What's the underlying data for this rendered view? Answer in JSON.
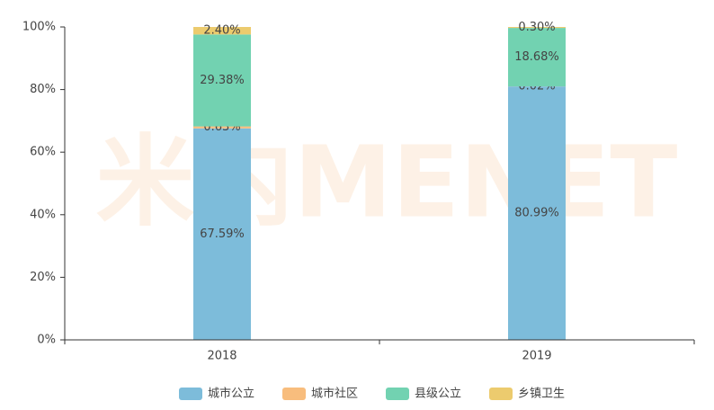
{
  "chart_data": {
    "type": "stacked-bar",
    "watermark": "米内MENET",
    "categories": [
      "2018",
      "2019"
    ],
    "series": [
      {
        "name": "城市公立",
        "color": "#7dbcda",
        "values": [
          67.59,
          80.99
        ],
        "value_labels": [
          "67.59%",
          "80.99%"
        ]
      },
      {
        "name": "城市社区",
        "color": "#f8bd7d",
        "values": [
          0.63,
          0.02
        ],
        "value_labels": [
          "0.63%",
          "0.02%"
        ]
      },
      {
        "name": "县级公立",
        "color": "#72d2b1",
        "values": [
          29.38,
          18.68
        ],
        "value_labels": [
          "29.38%",
          "18.68%"
        ]
      },
      {
        "name": "乡镇卫生",
        "color": "#eccb6e",
        "values": [
          2.4,
          0.3
        ],
        "value_labels": [
          "2.40%",
          "0.30%"
        ]
      }
    ],
    "ylim": [
      0,
      100
    ],
    "yticks": [
      {
        "value": 0,
        "label": "0%"
      },
      {
        "value": 20,
        "label": "20%"
      },
      {
        "value": 40,
        "label": "40%"
      },
      {
        "value": 60,
        "label": "60%"
      },
      {
        "value": 80,
        "label": "80%"
      },
      {
        "value": 100,
        "label": "100%"
      }
    ],
    "grid": false
  }
}
